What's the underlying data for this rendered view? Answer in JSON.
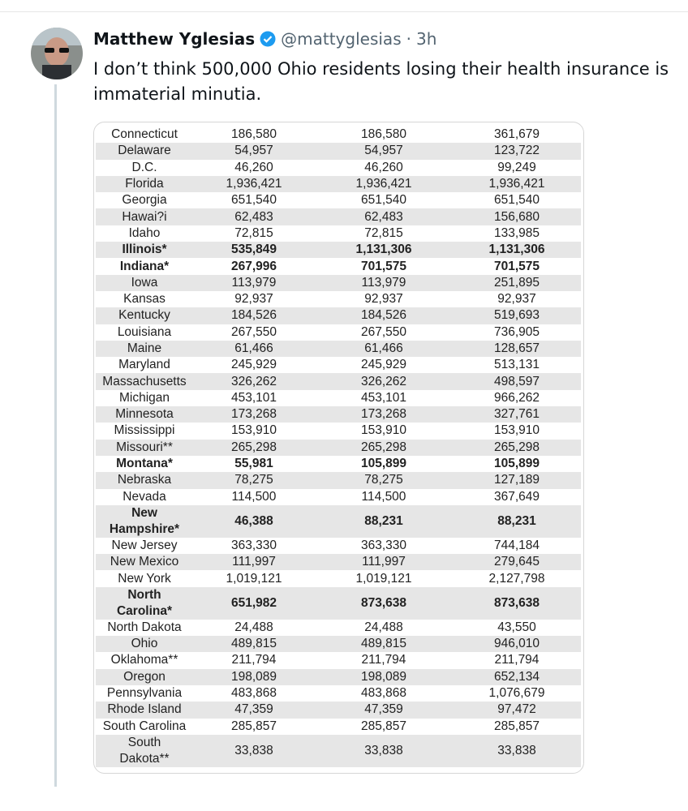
{
  "tweet": {
    "name": "Matthew Yglesias",
    "handle": "@mattyglesias",
    "separator": "·",
    "time": "3h",
    "text": "I don’t think 500,000 Ohio residents losing their health insurance is immaterial minutia."
  },
  "table": {
    "rows": [
      {
        "cells": [
          "Connecticut",
          "186,580",
          "186,580",
          "361,679"
        ]
      },
      {
        "cells": [
          "Delaware",
          "54,957",
          "54,957",
          "123,722"
        ]
      },
      {
        "cells": [
          "D.C.",
          "46,260",
          "46,260",
          "99,249"
        ]
      },
      {
        "cells": [
          "Florida",
          "1,936,421",
          "1,936,421",
          "1,936,421"
        ]
      },
      {
        "cells": [
          "Georgia",
          "651,540",
          "651,540",
          "651,540"
        ]
      },
      {
        "cells": [
          "Hawai?i",
          "62,483",
          "62,483",
          "156,680"
        ]
      },
      {
        "cells": [
          "Idaho",
          "72,815",
          "72,815",
          "133,985"
        ]
      },
      {
        "cells": [
          "Illinois*",
          "535,849",
          "1,131,306",
          "1,131,306"
        ],
        "bold": true
      },
      {
        "cells": [
          "Indiana*",
          "267,996",
          "701,575",
          "701,575"
        ],
        "bold": true
      },
      {
        "cells": [
          "Iowa",
          "113,979",
          "113,979",
          "251,895"
        ]
      },
      {
        "cells": [
          "Kansas",
          "92,937",
          "92,937",
          "92,937"
        ]
      },
      {
        "cells": [
          "Kentucky",
          "184,526",
          "184,526",
          "519,693"
        ]
      },
      {
        "cells": [
          "Louisiana",
          "267,550",
          "267,550",
          "736,905"
        ]
      },
      {
        "cells": [
          "Maine",
          "61,466",
          "61,466",
          "128,657"
        ]
      },
      {
        "cells": [
          "Maryland",
          "245,929",
          "245,929",
          "513,131"
        ]
      },
      {
        "cells": [
          "Massachusetts",
          "326,262",
          "326,262",
          "498,597"
        ]
      },
      {
        "cells": [
          "Michigan",
          "453,101",
          "453,101",
          "966,262"
        ]
      },
      {
        "cells": [
          "Minnesota",
          "173,268",
          "173,268",
          "327,761"
        ]
      },
      {
        "cells": [
          "Mississippi",
          "153,910",
          "153,910",
          "153,910"
        ]
      },
      {
        "cells": [
          "Missouri**",
          "265,298",
          "265,298",
          "265,298"
        ]
      },
      {
        "cells": [
          "Montana*",
          "55,981",
          "105,899",
          "105,899"
        ],
        "bold": true
      },
      {
        "cells": [
          "Nebraska",
          "78,275",
          "78,275",
          "127,189"
        ]
      },
      {
        "cells": [
          "Nevada",
          "114,500",
          "114,500",
          "367,649"
        ]
      },
      {
        "cells": [
          "New\nHampshire*",
          "46,388",
          "88,231",
          "88,231"
        ],
        "bold": true
      },
      {
        "cells": [
          "New Jersey",
          "363,330",
          "363,330",
          "744,184"
        ]
      },
      {
        "cells": [
          "New Mexico",
          "111,997",
          "111,997",
          "279,645"
        ]
      },
      {
        "cells": [
          "New York",
          "1,019,121",
          "1,019,121",
          "2,127,798"
        ]
      },
      {
        "cells": [
          "North\nCarolina*",
          "651,982",
          "873,638",
          "873,638"
        ],
        "bold": true
      },
      {
        "cells": [
          "North Dakota",
          "24,488",
          "24,488",
          "43,550"
        ]
      },
      {
        "cells": [
          "Ohio",
          "489,815",
          "489,815",
          "946,010"
        ]
      },
      {
        "cells": [
          "Oklahoma**",
          "211,794",
          "211,794",
          "211,794"
        ]
      },
      {
        "cells": [
          "Oregon",
          "198,089",
          "198,089",
          "652,134"
        ]
      },
      {
        "cells": [
          "Pennsylvania",
          "483,868",
          "483,868",
          "1,076,679"
        ]
      },
      {
        "cells": [
          "Rhode Island",
          "47,359",
          "47,359",
          "97,472"
        ]
      },
      {
        "cells": [
          "South Carolina",
          "285,857",
          "285,857",
          "285,857"
        ]
      },
      {
        "cells": [
          "South\nDakota**",
          "33,838",
          "33,838",
          "33,838"
        ]
      }
    ]
  }
}
